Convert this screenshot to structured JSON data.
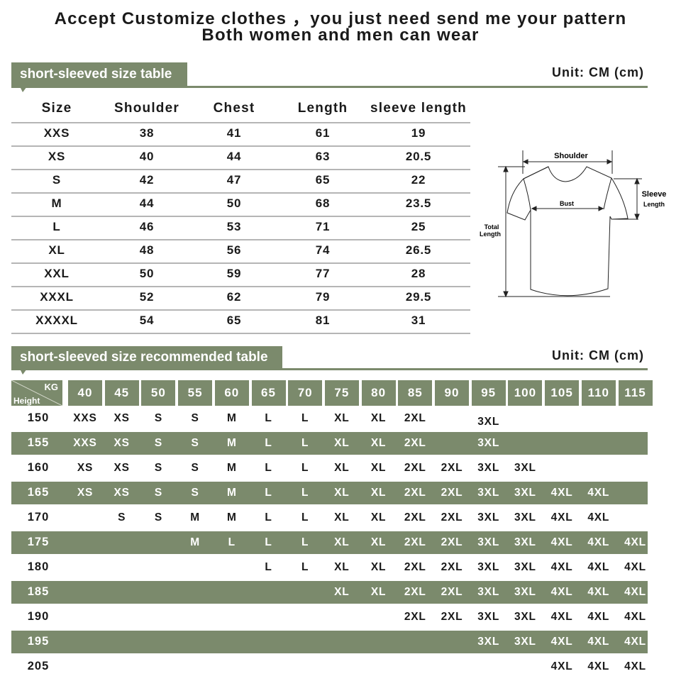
{
  "header": {
    "line1": "Accept Customize clothes ，you just need send me your pattern",
    "line2": "Both women and men can wear"
  },
  "size_table": {
    "title": "short-sleeved size table",
    "unit": "Unit: CM (cm)",
    "columns": [
      "Size",
      "Shoulder",
      "Chest",
      "Length",
      "sleeve length"
    ],
    "rows": [
      [
        "XXS",
        "38",
        "41",
        "61",
        "19"
      ],
      [
        "XS",
        "40",
        "44",
        "63",
        "20.5"
      ],
      [
        "S",
        "42",
        "47",
        "65",
        "22"
      ],
      [
        "M",
        "44",
        "50",
        "68",
        "23.5"
      ],
      [
        "L",
        "46",
        "53",
        "71",
        "25"
      ],
      [
        "XL",
        "48",
        "56",
        "74",
        "26.5"
      ],
      [
        "XXL",
        "50",
        "59",
        "77",
        "28"
      ],
      [
        "XXXL",
        "52",
        "62",
        "79",
        "29.5"
      ],
      [
        "XXXXL",
        "54",
        "65",
        "81",
        "31"
      ]
    ]
  },
  "diagram": {
    "shoulder": "Shoulder",
    "bust": "Bust",
    "sleeve1": "Sleeve",
    "sleeve2": "Length",
    "total1": "Total",
    "total2": "Length"
  },
  "recommend_table": {
    "title": "short-sleeved size recommended table",
    "unit": "Unit: CM (cm)",
    "corner_kg": "KG",
    "corner_height": "Height",
    "weights": [
      "40",
      "45",
      "50",
      "55",
      "60",
      "65",
      "70",
      "75",
      "80",
      "85",
      "90",
      "95",
      "100",
      "105",
      "110",
      "115"
    ],
    "rows": [
      {
        "height": "150",
        "sizes": [
          "XXS",
          "XS",
          "S",
          "S",
          "M",
          "L",
          "L",
          "XL",
          "XL",
          "2XL",
          "",
          "3XL",
          "",
          "",
          "",
          ""
        ]
      },
      {
        "height": "155",
        "sizes": [
          "XXS",
          "XS",
          "S",
          "S",
          "M",
          "L",
          "L",
          "XL",
          "XL",
          "2XL",
          "",
          "3XL",
          "",
          "",
          "",
          ""
        ]
      },
      {
        "height": "160",
        "sizes": [
          "XS",
          "XS",
          "S",
          "S",
          "M",
          "L",
          "L",
          "XL",
          "XL",
          "2XL",
          "2XL",
          "3XL",
          "3XL",
          "",
          "",
          ""
        ]
      },
      {
        "height": "165",
        "sizes": [
          "XS",
          "XS",
          "S",
          "S",
          "M",
          "L",
          "L",
          "XL",
          "XL",
          "2XL",
          "2XL",
          "3XL",
          "3XL",
          "4XL",
          "4XL",
          ""
        ]
      },
      {
        "height": "170",
        "sizes": [
          "",
          "S",
          "S",
          "M",
          "M",
          "L",
          "L",
          "XL",
          "XL",
          "2XL",
          "2XL",
          "3XL",
          "3XL",
          "4XL",
          "4XL",
          ""
        ]
      },
      {
        "height": "175",
        "sizes": [
          "",
          "",
          "",
          "M",
          "L",
          "L",
          "L",
          "XL",
          "XL",
          "2XL",
          "2XL",
          "3XL",
          "3XL",
          "4XL",
          "4XL",
          "4XL"
        ]
      },
      {
        "height": "180",
        "sizes": [
          "",
          "",
          "",
          "",
          "",
          "L",
          "L",
          "XL",
          "XL",
          "2XL",
          "2XL",
          "3XL",
          "3XL",
          "4XL",
          "4XL",
          "4XL"
        ]
      },
      {
        "height": "185",
        "sizes": [
          "",
          "",
          "",
          "",
          "",
          "",
          "",
          "XL",
          "XL",
          "2XL",
          "2XL",
          "3XL",
          "3XL",
          "4XL",
          "4XL",
          "4XL"
        ]
      },
      {
        "height": "190",
        "sizes": [
          "",
          "",
          "",
          "",
          "",
          "",
          "",
          "",
          "",
          "2XL",
          "2XL",
          "3XL",
          "3XL",
          "4XL",
          "4XL",
          "4XL"
        ]
      },
      {
        "height": "195",
        "sizes": [
          "",
          "",
          "",
          "",
          "",
          "",
          "",
          "",
          "",
          "",
          "",
          "3XL",
          "3XL",
          "4XL",
          "4XL",
          "4XL"
        ]
      },
      {
        "height": "205",
        "sizes": [
          "",
          "",
          "",
          "",
          "",
          "",
          "",
          "",
          "",
          "",
          "",
          "",
          "",
          "4XL",
          "4XL",
          "4XL"
        ]
      }
    ]
  },
  "colors": {
    "accent": "#7b8a6c",
    "text": "#1a1a1a",
    "rule": "#b5b5b5"
  }
}
